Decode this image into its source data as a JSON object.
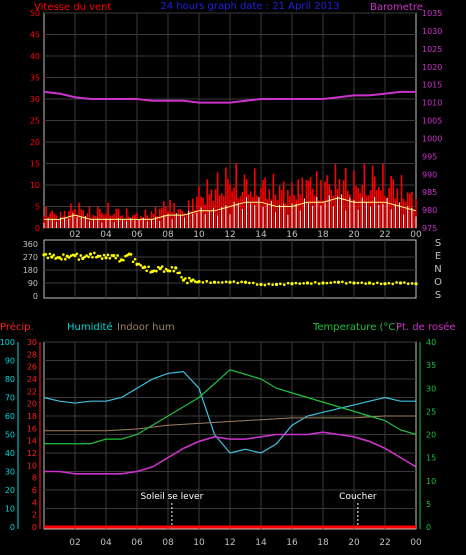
{
  "colors": {
    "background": "#000000",
    "frame": "#c0c0c0",
    "grid": "#3a3a3a",
    "wind_speed": "#ff0000",
    "wind_avg": "#ffff80",
    "wind_gust": "#ffffff",
    "barometer": "#cc33cc",
    "direction": "#ffff00",
    "humidity": "#40c0e0",
    "indoor_hum": "#a08060",
    "temperature": "#20c040",
    "dew_point": "#cc33cc",
    "precip": "#ff0000",
    "precip_axis": "#ff2020",
    "humidity_axis": "#00d8d8",
    "temp_axis": "#20c040",
    "title": "#2020e0",
    "baro_axis": "#cc33cc"
  },
  "x_tick_labels": [
    "02",
    "04",
    "06",
    "08",
    "10",
    "12",
    "14",
    "16",
    "18",
    "20",
    "22",
    "00"
  ],
  "chart_data": [
    {
      "type": "line",
      "title": "24 hours graph date : 21 April 2013",
      "left_axis_label": "Vitesse du vent",
      "right_axis_label": "Barometre",
      "left_ticks": [
        "0",
        "5",
        "10",
        "15",
        "20",
        "25",
        "30",
        "35",
        "40",
        "45",
        "50"
      ],
      "right_ticks": [
        "975",
        "980",
        "985",
        "990",
        "995",
        "1000",
        "1005",
        "1010",
        "1015",
        "1020",
        "1025",
        "1030",
        "1035"
      ],
      "ylim_left": [
        0,
        50
      ],
      "ylim_right": [
        975,
        1035
      ],
      "xlim": [
        0,
        24
      ],
      "series": [
        {
          "name": "Barometre",
          "axis": "right",
          "x": [
            0,
            1,
            2,
            3,
            4,
            5,
            6,
            7,
            8,
            9,
            10,
            11,
            12,
            13,
            14,
            15,
            16,
            17,
            18,
            19,
            20,
            21,
            22,
            23,
            24
          ],
          "values": [
            1013,
            1012.5,
            1011.5,
            1011,
            1011,
            1011,
            1011,
            1010.5,
            1010.5,
            1010.5,
            1010,
            1010,
            1010,
            1010.5,
            1011,
            1011,
            1011,
            1011,
            1011,
            1011.5,
            1012,
            1012,
            1012.5,
            1013,
            1013
          ]
        }
      ],
      "wind_envelope_hours": [
        0,
        1,
        2,
        3,
        4,
        5,
        6,
        7,
        8,
        9,
        10,
        11,
        12,
        13,
        14,
        15,
        16,
        17,
        18,
        19,
        20,
        21,
        22,
        23,
        24
      ],
      "wind_envelope_max": [
        6,
        4,
        7,
        5,
        6,
        5,
        4,
        5,
        8,
        5,
        11,
        13,
        16,
        14,
        14,
        13,
        12,
        15,
        14,
        16,
        14,
        16,
        15,
        13,
        9
      ],
      "wind_avg_values": [
        2,
        2,
        3,
        2,
        2,
        2,
        2,
        2,
        3,
        3,
        4,
        4,
        5,
        6,
        6,
        5,
        5,
        6,
        6,
        7,
        6,
        6,
        6,
        5,
        4
      ]
    },
    {
      "type": "scatter",
      "left_ticks": [
        "360",
        "270",
        "180",
        "90",
        "0"
      ],
      "right_labels": [
        "S",
        "E",
        "N",
        "O",
        "S"
      ],
      "ylim": [
        0,
        360
      ],
      "xlim": [
        0,
        24
      ],
      "x": [
        0,
        0.5,
        1,
        1.5,
        2,
        2.5,
        3,
        3.5,
        4,
        4.5,
        5,
        5.5,
        6,
        6.5,
        7,
        7.5,
        8,
        8.5,
        9,
        9.5,
        10,
        11,
        12,
        13,
        14,
        15,
        16,
        17,
        18,
        19,
        20,
        21,
        22,
        23,
        24
      ],
      "values": [
        285,
        270,
        265,
        275,
        280,
        260,
        290,
        275,
        265,
        280,
        250,
        290,
        220,
        200,
        170,
        190,
        175,
        195,
        110,
        105,
        100,
        95,
        95,
        95,
        80,
        80,
        85,
        90,
        90,
        95,
        90,
        90,
        85,
        90,
        85
      ]
    },
    {
      "type": "line",
      "precip_label": "Précip.",
      "humidity_label": "Humidité",
      "indoor_label": "Indoor hum",
      "temp_label": "Temperature (°C)",
      "dew_label": "Pt. de rosée",
      "humidity_ticks": [
        "0",
        "10",
        "20",
        "30",
        "40",
        "50",
        "60",
        "70",
        "80",
        "90",
        "100"
      ],
      "precip_ticks": [
        "0",
        "2",
        "4",
        "6",
        "8",
        "10",
        "12",
        "14",
        "16",
        "18",
        "20",
        "22",
        "24",
        "26",
        "28",
        "30"
      ],
      "temp_ticks": [
        "0",
        "5",
        "10",
        "15",
        "20",
        "25",
        "30",
        "35",
        "40"
      ],
      "ylim_humidity": [
        0,
        100
      ],
      "ylim_temp": [
        0,
        40
      ],
      "xlim": [
        0,
        24
      ],
      "event_markers": [
        {
          "label": "Soleil se lever",
          "hour": 8.25
        },
        {
          "label": "Coucher",
          "hour": 20.25
        }
      ],
      "series": [
        {
          "name": "Humidité",
          "axis": "humidity",
          "x": [
            0,
            1,
            2,
            3,
            4,
            5,
            6,
            7,
            8,
            9,
            10,
            11,
            12,
            13,
            14,
            15,
            16,
            17,
            18,
            19,
            20,
            21,
            22,
            23,
            24
          ],
          "values": [
            70,
            68,
            67,
            68,
            68,
            70,
            75,
            80,
            83,
            84,
            75,
            50,
            40,
            42,
            40,
            45,
            55,
            60,
            62,
            64,
            66,
            68,
            70,
            68,
            68
          ]
        },
        {
          "name": "Indoor hum",
          "axis": "humidity",
          "x": [
            0,
            2,
            4,
            6,
            8,
            10,
            12,
            14,
            16,
            18,
            20,
            22,
            24
          ],
          "values": [
            52,
            52,
            52,
            53,
            55,
            56,
            57,
            58,
            59,
            59,
            59,
            60,
            60
          ]
        },
        {
          "name": "Temperature",
          "axis": "temp",
          "x": [
            0,
            1,
            2,
            3,
            4,
            5,
            6,
            7,
            8,
            9,
            10,
            11,
            12,
            13,
            14,
            15,
            16,
            17,
            18,
            19,
            20,
            21,
            22,
            23,
            24
          ],
          "values": [
            18,
            18,
            18,
            18,
            19,
            19,
            20,
            22,
            24,
            26,
            28,
            31,
            34,
            33,
            32,
            30,
            29,
            28,
            27,
            26,
            25,
            24,
            23,
            21,
            20
          ]
        },
        {
          "name": "Pt. de rosée",
          "axis": "temp",
          "x": [
            0,
            1,
            2,
            3,
            4,
            5,
            6,
            7,
            8,
            9,
            10,
            11,
            12,
            13,
            14,
            15,
            16,
            17,
            18,
            19,
            20,
            21,
            22,
            23,
            24
          ],
          "values": [
            12,
            12,
            11.5,
            11.5,
            11.5,
            11.5,
            12,
            13,
            15,
            17,
            18.5,
            19.5,
            19,
            19,
            19.5,
            20,
            20,
            20,
            20.5,
            20,
            19.5,
            18.5,
            17,
            15,
            13
          ]
        },
        {
          "name": "Précip.",
          "axis": "precip",
          "x": [
            0,
            24
          ],
          "values": [
            0,
            0
          ]
        }
      ]
    }
  ]
}
